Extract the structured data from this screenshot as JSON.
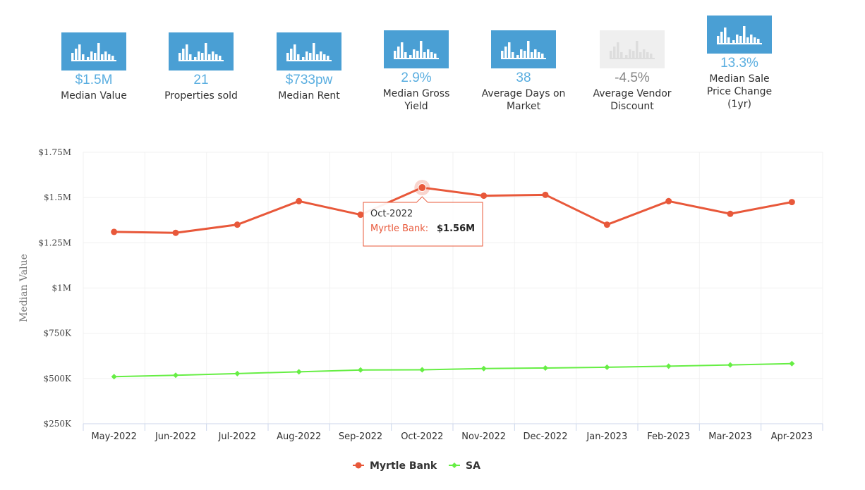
{
  "stats": [
    {
      "value": "$1.5M",
      "label": "Median Value",
      "active": true,
      "icon": "bar-chart-icon"
    },
    {
      "value": "21",
      "label": "Properties sold",
      "active": true,
      "icon": "bar-chart-icon"
    },
    {
      "value": "$733pw",
      "label": "Median Rent",
      "active": true,
      "icon": "bar-chart-icon"
    },
    {
      "value": "2.9%",
      "label": "Median Gross Yield",
      "active": true,
      "icon": "bar-chart-icon"
    },
    {
      "value": "38",
      "label": "Average Days on Market",
      "active": true,
      "icon": "bar-chart-icon"
    },
    {
      "value": "-4.5%",
      "label": "Average Vendor Discount",
      "active": false,
      "icon": "bar-chart-icon"
    },
    {
      "value": "13.3%",
      "label": "Median Sale Price Change (1yr)",
      "active": true,
      "icon": "bar-chart-icon"
    }
  ],
  "chart_data": {
    "type": "line",
    "ylabel": "Median Value",
    "ylim": [
      250000,
      1750000
    ],
    "yticks": [
      250000,
      500000,
      750000,
      1000000,
      1250000,
      1500000,
      1750000
    ],
    "ytick_labels": [
      "$250K",
      "$500K",
      "$750K",
      "$1M",
      "$1.25M",
      "$1.5M",
      "$1.75M"
    ],
    "categories": [
      "May-2022",
      "Jun-2022",
      "Jul-2022",
      "Aug-2022",
      "Sep-2022",
      "Oct-2022",
      "Nov-2022",
      "Dec-2022",
      "Jan-2023",
      "Feb-2023",
      "Mar-2023",
      "Apr-2023"
    ],
    "series": [
      {
        "name": "Myrtle Bank",
        "color": "#e8583a",
        "marker": "circle",
        "values": [
          1310000,
          1305000,
          1350000,
          1480000,
          1405000,
          1555000,
          1510000,
          1515000,
          1350000,
          1480000,
          1410000,
          1475000
        ]
      },
      {
        "name": "SA",
        "color": "#66ee44",
        "marker": "diamond",
        "values": [
          510000,
          518000,
          527000,
          537000,
          547000,
          548000,
          555000,
          558000,
          562000,
          568000,
          575000,
          582000
        ]
      }
    ],
    "grid": true,
    "legend_position": "bottom-center",
    "tooltip": {
      "series_index": 0,
      "point_index": 5,
      "title": "Oct-2022",
      "series_label": "Myrtle Bank:",
      "value_label": "$1.56M"
    }
  }
}
